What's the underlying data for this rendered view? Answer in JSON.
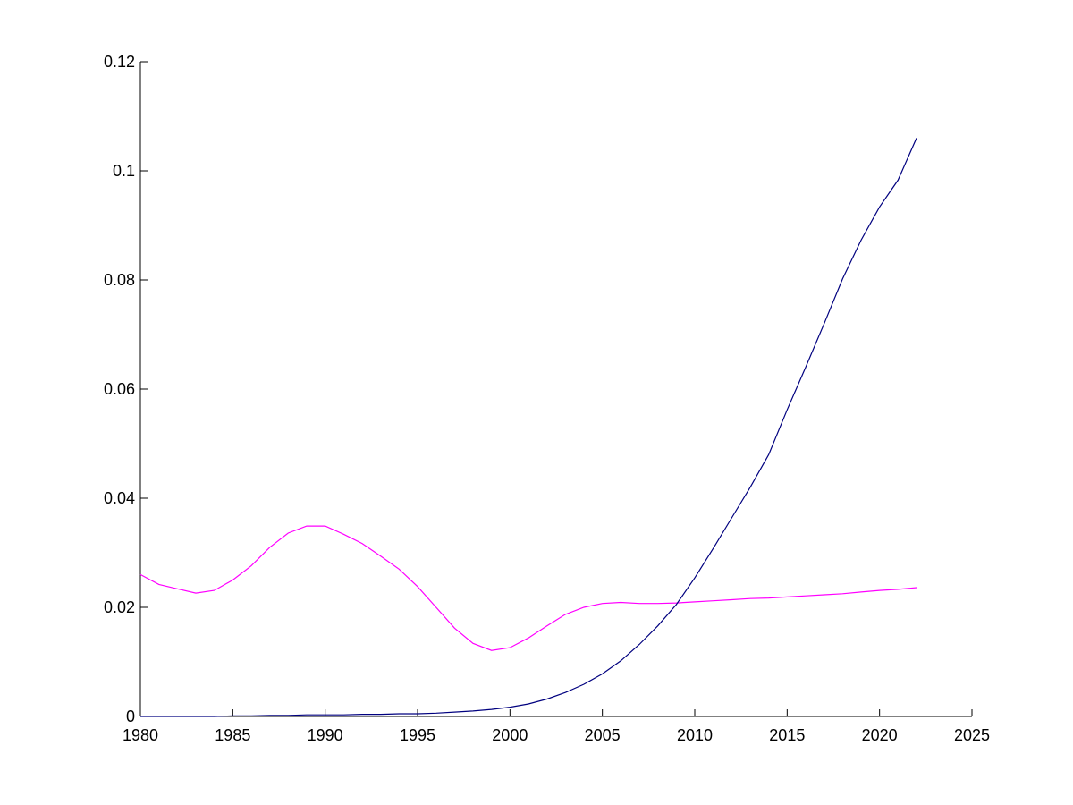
{
  "chart_data": {
    "type": "line",
    "title": "",
    "xlabel": "",
    "ylabel": "",
    "xlim": [
      1980,
      2025
    ],
    "ylim": [
      0,
      0.12
    ],
    "x_ticks": [
      1980,
      1985,
      1990,
      1995,
      2000,
      2005,
      2010,
      2015,
      2020,
      2025
    ],
    "y_ticks": [
      0,
      0.02,
      0.04,
      0.06,
      0.08,
      0.1,
      0.12
    ],
    "x_tick_labels": [
      "1980",
      "1985",
      "1990",
      "1995",
      "2000",
      "2005",
      "2010",
      "2015",
      "2020",
      "2025"
    ],
    "y_tick_labels": [
      "0",
      "0.02",
      "0.04",
      "0.06",
      "0.08",
      "0.1",
      "0.12"
    ],
    "grid": false,
    "legend": "none",
    "series": [
      {
        "color": "#ff00ff",
        "x": [
          1980,
          1981,
          1982,
          1983,
          1984,
          1985,
          1986,
          1987,
          1988,
          1989,
          1990,
          1991,
          1992,
          1993,
          1994,
          1995,
          1996,
          1997,
          1998,
          1999,
          2000,
          2001,
          2002,
          2003,
          2004,
          2005,
          2006,
          2007,
          2008,
          2009,
          2010,
          2011,
          2012,
          2013,
          2014,
          2015,
          2016,
          2017,
          2018,
          2019,
          2020,
          2021,
          2022
        ],
        "y": [
          0.026,
          0.0242,
          0.0234,
          0.0226,
          0.0231,
          0.025,
          0.0276,
          0.031,
          0.0336,
          0.0349,
          0.0349,
          0.0334,
          0.0317,
          0.0294,
          0.027,
          0.0238,
          0.02,
          0.0162,
          0.0134,
          0.0121,
          0.0126,
          0.0144,
          0.0166,
          0.0187,
          0.02,
          0.0207,
          0.0209,
          0.0207,
          0.0207,
          0.0208,
          0.021,
          0.0212,
          0.0214,
          0.0216,
          0.0217,
          0.0219,
          0.0221,
          0.0223,
          0.0225,
          0.0228,
          0.0231,
          0.0233,
          0.0236
        ]
      },
      {
        "color": "#00007f",
        "x": [
          1980,
          1981,
          1982,
          1983,
          1984,
          1985,
          1986,
          1987,
          1988,
          1989,
          1990,
          1991,
          1992,
          1993,
          1994,
          1995,
          1996,
          1997,
          1998,
          1999,
          2000,
          2001,
          2002,
          2003,
          2004,
          2005,
          2006,
          2007,
          2008,
          2009,
          2010,
          2011,
          2012,
          2013,
          2014,
          2015,
          2016,
          2017,
          2018,
          2019,
          2020,
          2021,
          2022
        ],
        "y": [
          0.0,
          0.0,
          0.0,
          0.0,
          0.0,
          0.0001,
          0.0001,
          0.0002,
          0.0002,
          0.0003,
          0.0003,
          0.0003,
          0.0004,
          0.0004,
          0.0005,
          0.0005,
          0.0006,
          0.0008,
          0.001,
          0.0013,
          0.0017,
          0.0023,
          0.0032,
          0.0044,
          0.0059,
          0.0078,
          0.0102,
          0.0132,
          0.0166,
          0.0205,
          0.0254,
          0.0308,
          0.0364,
          0.042,
          0.048,
          0.0562,
          0.064,
          0.072,
          0.0802,
          0.0873,
          0.0934,
          0.0983,
          0.106
        ]
      }
    ]
  }
}
